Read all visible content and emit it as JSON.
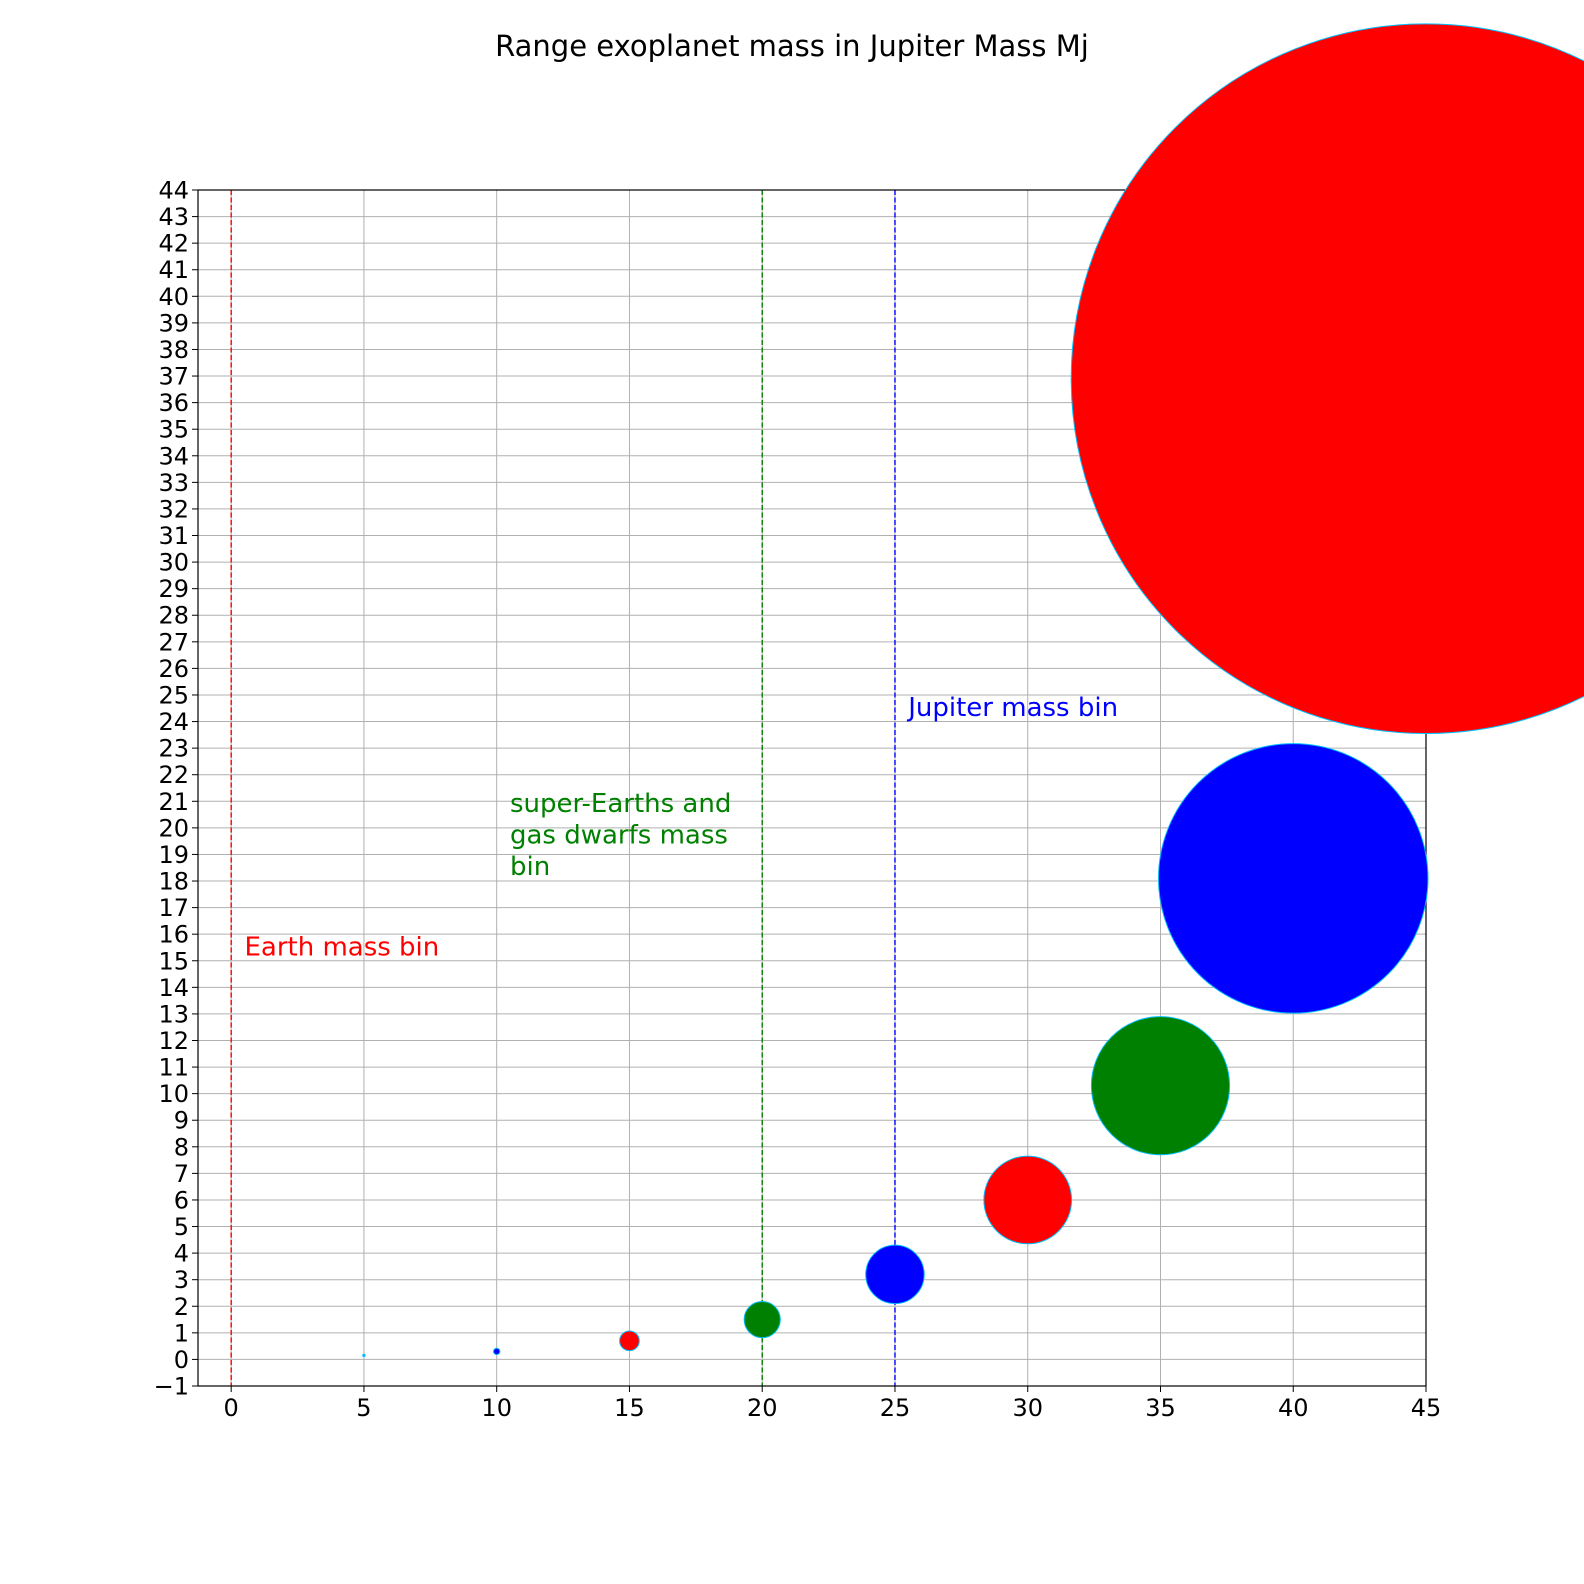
{
  "chart_data": {
    "type": "scatter",
    "title": "Range exoplanet mass in Jupiter Mass Mj",
    "xlabel": "",
    "ylabel": "",
    "xlim": [
      -1.25,
      45
    ],
    "ylim": [
      -1,
      44
    ],
    "x_ticks": [
      0,
      5,
      10,
      15,
      20,
      25,
      30,
      35,
      40,
      45
    ],
    "y_ticks": [
      -1,
      0,
      1,
      2,
      3,
      4,
      5,
      6,
      7,
      8,
      9,
      10,
      11,
      12,
      13,
      14,
      15,
      16,
      17,
      18,
      19,
      20,
      21,
      22,
      23,
      24,
      25,
      26,
      27,
      28,
      29,
      30,
      31,
      32,
      33,
      34,
      35,
      36,
      37,
      38,
      39,
      40,
      41,
      42,
      43,
      44
    ],
    "grid": true,
    "points": [
      {
        "x": 5,
        "y": 0.15,
        "color": "#00bfff",
        "radius_mj": 0.04
      },
      {
        "x": 10,
        "y": 0.3,
        "color": "#0000ff",
        "radius_mj": 0.12
      },
      {
        "x": 15,
        "y": 0.7,
        "color": "#ff0000",
        "radius_mj": 0.37
      },
      {
        "x": 20,
        "y": 1.5,
        "color": "#008000",
        "radius_mj": 0.68
      },
      {
        "x": 25,
        "y": 3.2,
        "color": "#0000ff",
        "radius_mj": 1.1
      },
      {
        "x": 30,
        "y": 6.0,
        "color": "#ff0000",
        "radius_mj": 1.65
      },
      {
        "x": 35,
        "y": 10.3,
        "color": "#008000",
        "radius_mj": 2.6
      },
      {
        "x": 40,
        "y": 18.1,
        "color": "#0000ff",
        "radius_mj": 5.07
      },
      {
        "x": 45,
        "y": 36.9,
        "color": "#ff0000",
        "radius_mj": 13.35
      }
    ],
    "vertical_lines": [
      {
        "x": 0,
        "color": "#ff0000",
        "style": "dashed"
      },
      {
        "x": 20,
        "color": "#008000",
        "style": "dashed"
      },
      {
        "x": 25,
        "color": "#0000ff",
        "style": "dashed"
      }
    ],
    "annotations": [
      {
        "lines": [
          "Earth mass bin"
        ],
        "x": 0.5,
        "y": 15.2,
        "color": "#ff0000"
      },
      {
        "lines": [
          "super-Earths and",
          "gas dwarfs mass",
          "bin"
        ],
        "x": 10.5,
        "y": 20.6,
        "color": "#008000"
      },
      {
        "lines": [
          "Jupiter mass bin"
        ],
        "x": 25.5,
        "y": 24.2,
        "color": "#0000ff"
      }
    ],
    "marker_edge_color": "#00bfff"
  }
}
